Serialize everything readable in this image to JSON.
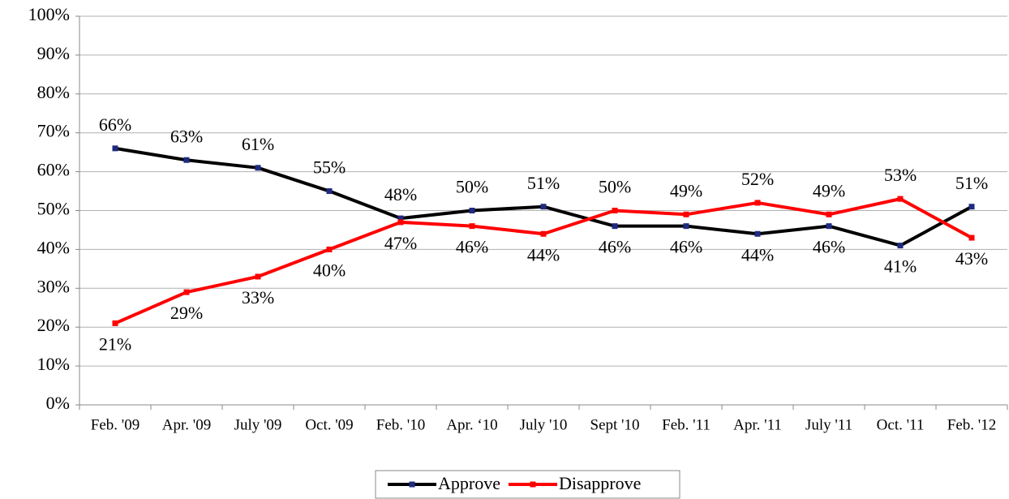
{
  "chart_data": {
    "type": "line",
    "categories": [
      "Feb. '09",
      "Apr. '09",
      "July '09",
      "Oct. '09",
      "Feb. '10",
      "Apr. ‘10",
      "July '10",
      "Sept '10",
      "Feb. '11",
      "Apr. '11",
      "July '11",
      "Oct. '11",
      "Feb. '12"
    ],
    "series": [
      {
        "name": "Approve",
        "color": "#000000",
        "marker_color": "#1f2a80",
        "values": [
          66,
          63,
          61,
          55,
          48,
          50,
          51,
          46,
          46,
          44,
          46,
          41,
          51
        ],
        "value_labels": [
          "66%",
          "63%",
          "61%",
          "55%",
          "48%",
          "50%",
          "51%",
          "46%",
          "46%",
          "44%",
          "46%",
          "41%",
          "51%"
        ]
      },
      {
        "name": "Disapprove",
        "color": "#ff0000",
        "marker_color": "#ff0000",
        "values": [
          21,
          29,
          33,
          40,
          47,
          46,
          44,
          50,
          49,
          52,
          49,
          53,
          43
        ],
        "value_labels": [
          "21%",
          "29%",
          "33%",
          "40%",
          "47%",
          "46%",
          "44%",
          "50%",
          "49%",
          "52%",
          "49%",
          "53%",
          "43%"
        ]
      }
    ],
    "ylim": [
      0,
      100
    ],
    "yticks": [
      {
        "value": 0,
        "label": "0%"
      },
      {
        "value": 10,
        "label": "10%"
      },
      {
        "value": 20,
        "label": "20%"
      },
      {
        "value": 30,
        "label": "30%"
      },
      {
        "value": 40,
        "label": "40%"
      },
      {
        "value": 50,
        "label": "50%"
      },
      {
        "value": 60,
        "label": "60%"
      },
      {
        "value": 70,
        "label": "70%"
      },
      {
        "value": 80,
        "label": "80%"
      },
      {
        "value": 90,
        "label": "90%"
      },
      {
        "value": 100,
        "label": "100%"
      }
    ],
    "grid": true,
    "legend": "bottom"
  }
}
